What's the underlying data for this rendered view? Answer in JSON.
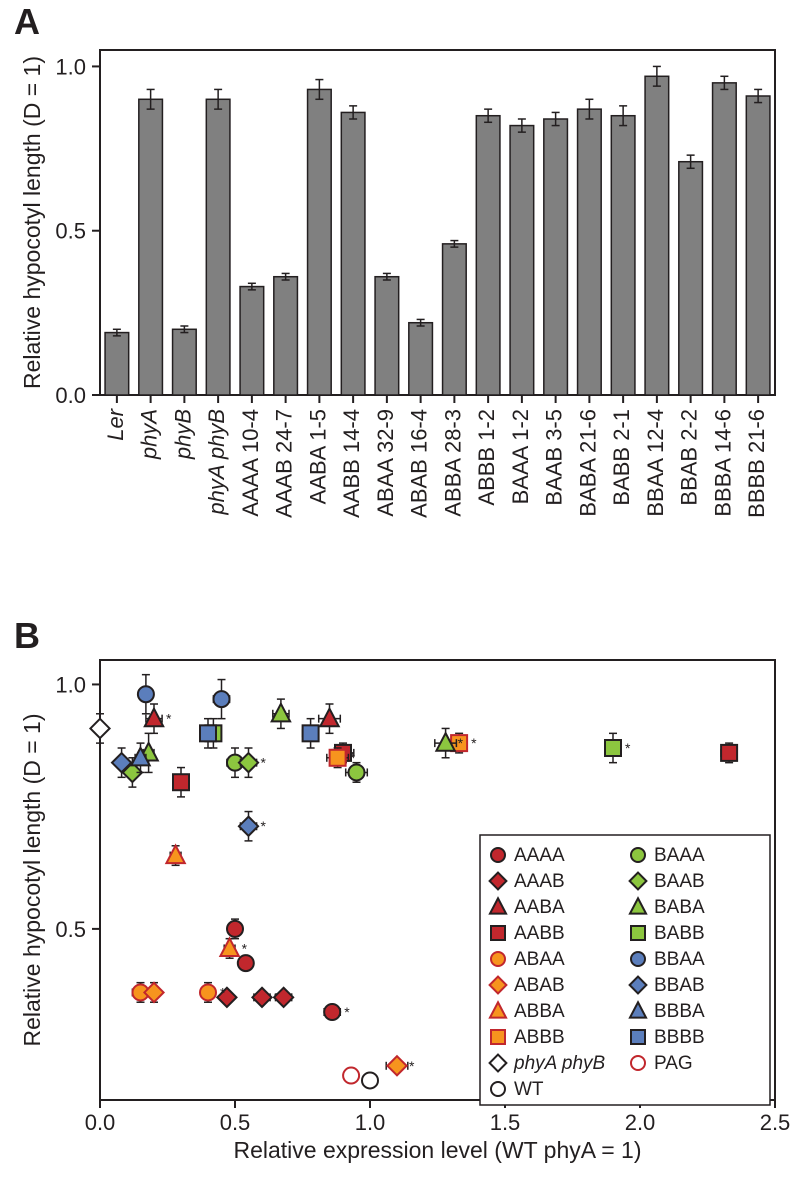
{
  "panelA": {
    "label": "A",
    "type": "bar",
    "ylabel": "Relative hypocotyl length (D = 1)",
    "ylim": [
      0.0,
      1.05
    ],
    "yticks": [
      0.0,
      0.5,
      1.0
    ],
    "bar_color": "#808080",
    "border_color": "#231f20",
    "background_color": "#ffffff",
    "bar_width": 0.7,
    "categories": [
      {
        "label": "Ler",
        "italic": true
      },
      {
        "label": "phyA",
        "italic": true
      },
      {
        "label": "phyB",
        "italic": true
      },
      {
        "label": "phyA phyB",
        "italic": true
      },
      {
        "label": "AAAA 10-4",
        "italic": false
      },
      {
        "label": "AAAB 24-7",
        "italic": false
      },
      {
        "label": "AABA 1-5",
        "italic": false
      },
      {
        "label": "AABB 14-4",
        "italic": false
      },
      {
        "label": "ABAA 32-9",
        "italic": false
      },
      {
        "label": "ABAB 16-4",
        "italic": false
      },
      {
        "label": "ABBA 28-3",
        "italic": false
      },
      {
        "label": "ABBB 1-2",
        "italic": false
      },
      {
        "label": "BAAA 1-2",
        "italic": false
      },
      {
        "label": "BAAB 3-5",
        "italic": false
      },
      {
        "label": "BABA 21-6",
        "italic": false
      },
      {
        "label": "BABB 2-1",
        "italic": false
      },
      {
        "label": "BBAA 12-4",
        "italic": false
      },
      {
        "label": "BBAB 2-2",
        "italic": false
      },
      {
        "label": "BBBA 14-6",
        "italic": false
      },
      {
        "label": "BBBB 21-6",
        "italic": false
      }
    ],
    "values": [
      0.19,
      0.9,
      0.2,
      0.9,
      0.33,
      0.36,
      0.93,
      0.86,
      0.36,
      0.22,
      0.46,
      0.85,
      0.82,
      0.84,
      0.87,
      0.85,
      0.97,
      0.71,
      0.95,
      0.91
    ],
    "errors": [
      0.01,
      0.03,
      0.01,
      0.03,
      0.01,
      0.01,
      0.03,
      0.02,
      0.01,
      0.01,
      0.01,
      0.02,
      0.02,
      0.02,
      0.03,
      0.03,
      0.03,
      0.02,
      0.02,
      0.02
    ],
    "label_fontsize": 22,
    "tick_fontsize": 22
  },
  "panelB": {
    "label": "B",
    "type": "scatter",
    "ylabel": "Relative hypocotyl length (D = 1)",
    "xlabel": "Relative expression level (WT phyA = 1)",
    "xlim": [
      0.0,
      2.5
    ],
    "ylim": [
      0.15,
      1.05
    ],
    "xticks": [
      0.0,
      0.5,
      1.0,
      1.5,
      2.0,
      2.5
    ],
    "yticks": [
      0.5,
      1.0
    ],
    "border_color": "#231f20",
    "background_color": "#ffffff",
    "label_fontsize": 23,
    "tick_fontsize": 22,
    "series": [
      {
        "name": "AAAA",
        "marker": "circle",
        "fill": "#c1272d",
        "stroke": "#231f20",
        "points": [
          {
            "x": 0.5,
            "y": 0.5,
            "xe": 0.02,
            "ye": 0.02,
            "star": false
          },
          {
            "x": 0.54,
            "y": 0.43,
            "xe": 0.02,
            "ye": 0.01,
            "star": false
          },
          {
            "x": 0.86,
            "y": 0.33,
            "xe": 0.03,
            "ye": 0.01,
            "star": true
          }
        ]
      },
      {
        "name": "AAAB",
        "marker": "diamond",
        "fill": "#c1272d",
        "stroke": "#231f20",
        "points": [
          {
            "x": 0.47,
            "y": 0.36,
            "xe": 0.02,
            "ye": 0.01,
            "star": false
          },
          {
            "x": 0.6,
            "y": 0.36,
            "xe": 0.03,
            "ye": 0.01,
            "star": true
          },
          {
            "x": 0.68,
            "y": 0.36,
            "xe": 0.03,
            "ye": 0.01,
            "star": false
          }
        ]
      },
      {
        "name": "AABA",
        "marker": "triangle",
        "fill": "#c1272d",
        "stroke": "#231f20",
        "points": [
          {
            "x": 0.2,
            "y": 0.93,
            "xe": 0.03,
            "ye": 0.03,
            "star": true
          },
          {
            "x": 0.85,
            "y": 0.93,
            "xe": 0.04,
            "ye": 0.03,
            "star": false
          }
        ]
      },
      {
        "name": "AABB",
        "marker": "square",
        "fill": "#c1272d",
        "stroke": "#231f20",
        "points": [
          {
            "x": 0.3,
            "y": 0.8,
            "xe": 0.02,
            "ye": 0.03,
            "star": false
          },
          {
            "x": 0.9,
            "y": 0.86,
            "xe": 0.04,
            "ye": 0.02,
            "star": false
          },
          {
            "x": 2.33,
            "y": 0.86,
            "xe": 0.03,
            "ye": 0.02,
            "star": false
          }
        ]
      },
      {
        "name": "ABAA",
        "marker": "circle",
        "fill": "#f7941e",
        "stroke": "#c1272d",
        "points": [
          {
            "x": 0.15,
            "y": 0.37,
            "xe": 0.03,
            "ye": 0.02,
            "star": false
          },
          {
            "x": 0.4,
            "y": 0.37,
            "xe": 0.02,
            "ye": 0.02,
            "star": true
          }
        ]
      },
      {
        "name": "ABAB",
        "marker": "diamond",
        "fill": "#f7941e",
        "stroke": "#c1272d",
        "points": [
          {
            "x": 0.2,
            "y": 0.37,
            "xe": 0.02,
            "ye": 0.02,
            "star": false
          },
          {
            "x": 1.1,
            "y": 0.22,
            "xe": 0.04,
            "ye": 0.01,
            "star": true
          }
        ]
      },
      {
        "name": "ABBA",
        "marker": "triangle",
        "fill": "#f7941e",
        "stroke": "#c1272d",
        "points": [
          {
            "x": 0.28,
            "y": 0.65,
            "xe": 0.02,
            "ye": 0.02,
            "star": false
          },
          {
            "x": 0.48,
            "y": 0.46,
            "xe": 0.02,
            "ye": 0.02,
            "star": true
          }
        ]
      },
      {
        "name": "ABBB",
        "marker": "square",
        "fill": "#f7941e",
        "stroke": "#c1272d",
        "points": [
          {
            "x": 0.88,
            "y": 0.85,
            "xe": 0.04,
            "ye": 0.02,
            "star": true
          },
          {
            "x": 1.33,
            "y": 0.88,
            "xe": 0.03,
            "ye": 0.02,
            "star": true
          }
        ]
      },
      {
        "name": "BAAA",
        "marker": "circle",
        "fill": "#8cc63f",
        "stroke": "#231f20",
        "points": [
          {
            "x": 0.5,
            "y": 0.84,
            "xe": 0.03,
            "ye": 0.03,
            "star": false
          },
          {
            "x": 0.95,
            "y": 0.82,
            "xe": 0.04,
            "ye": 0.02,
            "star": false
          }
        ]
      },
      {
        "name": "BAAB",
        "marker": "diamond",
        "fill": "#8cc63f",
        "stroke": "#231f20",
        "points": [
          {
            "x": 0.12,
            "y": 0.82,
            "xe": 0.02,
            "ye": 0.03,
            "star": false
          },
          {
            "x": 0.55,
            "y": 0.84,
            "xe": 0.03,
            "ye": 0.03,
            "star": true
          }
        ]
      },
      {
        "name": "BABA",
        "marker": "triangle",
        "fill": "#8cc63f",
        "stroke": "#231f20",
        "points": [
          {
            "x": 0.18,
            "y": 0.86,
            "xe": 0.02,
            "ye": 0.04,
            "star": false
          },
          {
            "x": 0.67,
            "y": 0.94,
            "xe": 0.03,
            "ye": 0.03,
            "star": false
          },
          {
            "x": 1.28,
            "y": 0.88,
            "xe": 0.04,
            "ye": 0.03,
            "star": true
          }
        ]
      },
      {
        "name": "BABB",
        "marker": "square",
        "fill": "#8cc63f",
        "stroke": "#231f20",
        "points": [
          {
            "x": 0.42,
            "y": 0.9,
            "xe": 0.02,
            "ye": 0.03,
            "star": false
          },
          {
            "x": 1.9,
            "y": 0.87,
            "xe": 0.03,
            "ye": 0.03,
            "star": true
          }
        ]
      },
      {
        "name": "BBAA",
        "marker": "circle",
        "fill": "#5b7ebc",
        "stroke": "#231f20",
        "points": [
          {
            "x": 0.17,
            "y": 0.98,
            "xe": 0.02,
            "ye": 0.04,
            "star": false
          },
          {
            "x": 0.45,
            "y": 0.97,
            "xe": 0.03,
            "ye": 0.04,
            "star": false
          }
        ]
      },
      {
        "name": "BBAB",
        "marker": "diamond",
        "fill": "#5b7ebc",
        "stroke": "#231f20",
        "points": [
          {
            "x": 0.08,
            "y": 0.84,
            "xe": 0.02,
            "ye": 0.03,
            "star": false
          },
          {
            "x": 0.55,
            "y": 0.71,
            "xe": 0.03,
            "ye": 0.03,
            "star": true
          }
        ]
      },
      {
        "name": "BBBA",
        "marker": "triangle",
        "fill": "#5b7ebc",
        "stroke": "#231f20",
        "points": [
          {
            "x": 0.15,
            "y": 0.85,
            "xe": 0.02,
            "ye": 0.03,
            "star": false
          }
        ]
      },
      {
        "name": "BBBB",
        "marker": "square",
        "fill": "#5b7ebc",
        "stroke": "#231f20",
        "points": [
          {
            "x": 0.4,
            "y": 0.9,
            "xe": 0.02,
            "ye": 0.03,
            "star": false
          },
          {
            "x": 0.78,
            "y": 0.9,
            "xe": 0.03,
            "ye": 0.03,
            "star": false
          }
        ]
      },
      {
        "name": "phyA phyB",
        "marker": "diamond",
        "fill": "#ffffff",
        "stroke": "#231f20",
        "italic": true,
        "points": [
          {
            "x": 0.0,
            "y": 0.91,
            "xe": 0.0,
            "ye": 0.03,
            "star": false
          }
        ]
      },
      {
        "name": "PAG",
        "marker": "circle",
        "fill": "#ffffff",
        "stroke": "#c1272d",
        "points": [
          {
            "x": 0.93,
            "y": 0.2,
            "xe": 0.0,
            "ye": 0.01,
            "star": false
          }
        ]
      },
      {
        "name": "WT",
        "marker": "circle",
        "fill": "#ffffff",
        "stroke": "#231f20",
        "points": [
          {
            "x": 1.0,
            "y": 0.19,
            "xe": 0.0,
            "ye": 0.01,
            "star": false
          }
        ]
      }
    ],
    "legend": {
      "columns": [
        [
          "AAAA",
          "AAAB",
          "AABA",
          "AABB",
          "ABAA",
          "ABAB",
          "ABBA",
          "ABBB",
          "phyA phyB",
          "WT"
        ],
        [
          "BAAA",
          "BAAB",
          "BABA",
          "BABB",
          "BBAA",
          "BBAB",
          "BBBA",
          "BBBB",
          "PAG"
        ]
      ]
    }
  }
}
